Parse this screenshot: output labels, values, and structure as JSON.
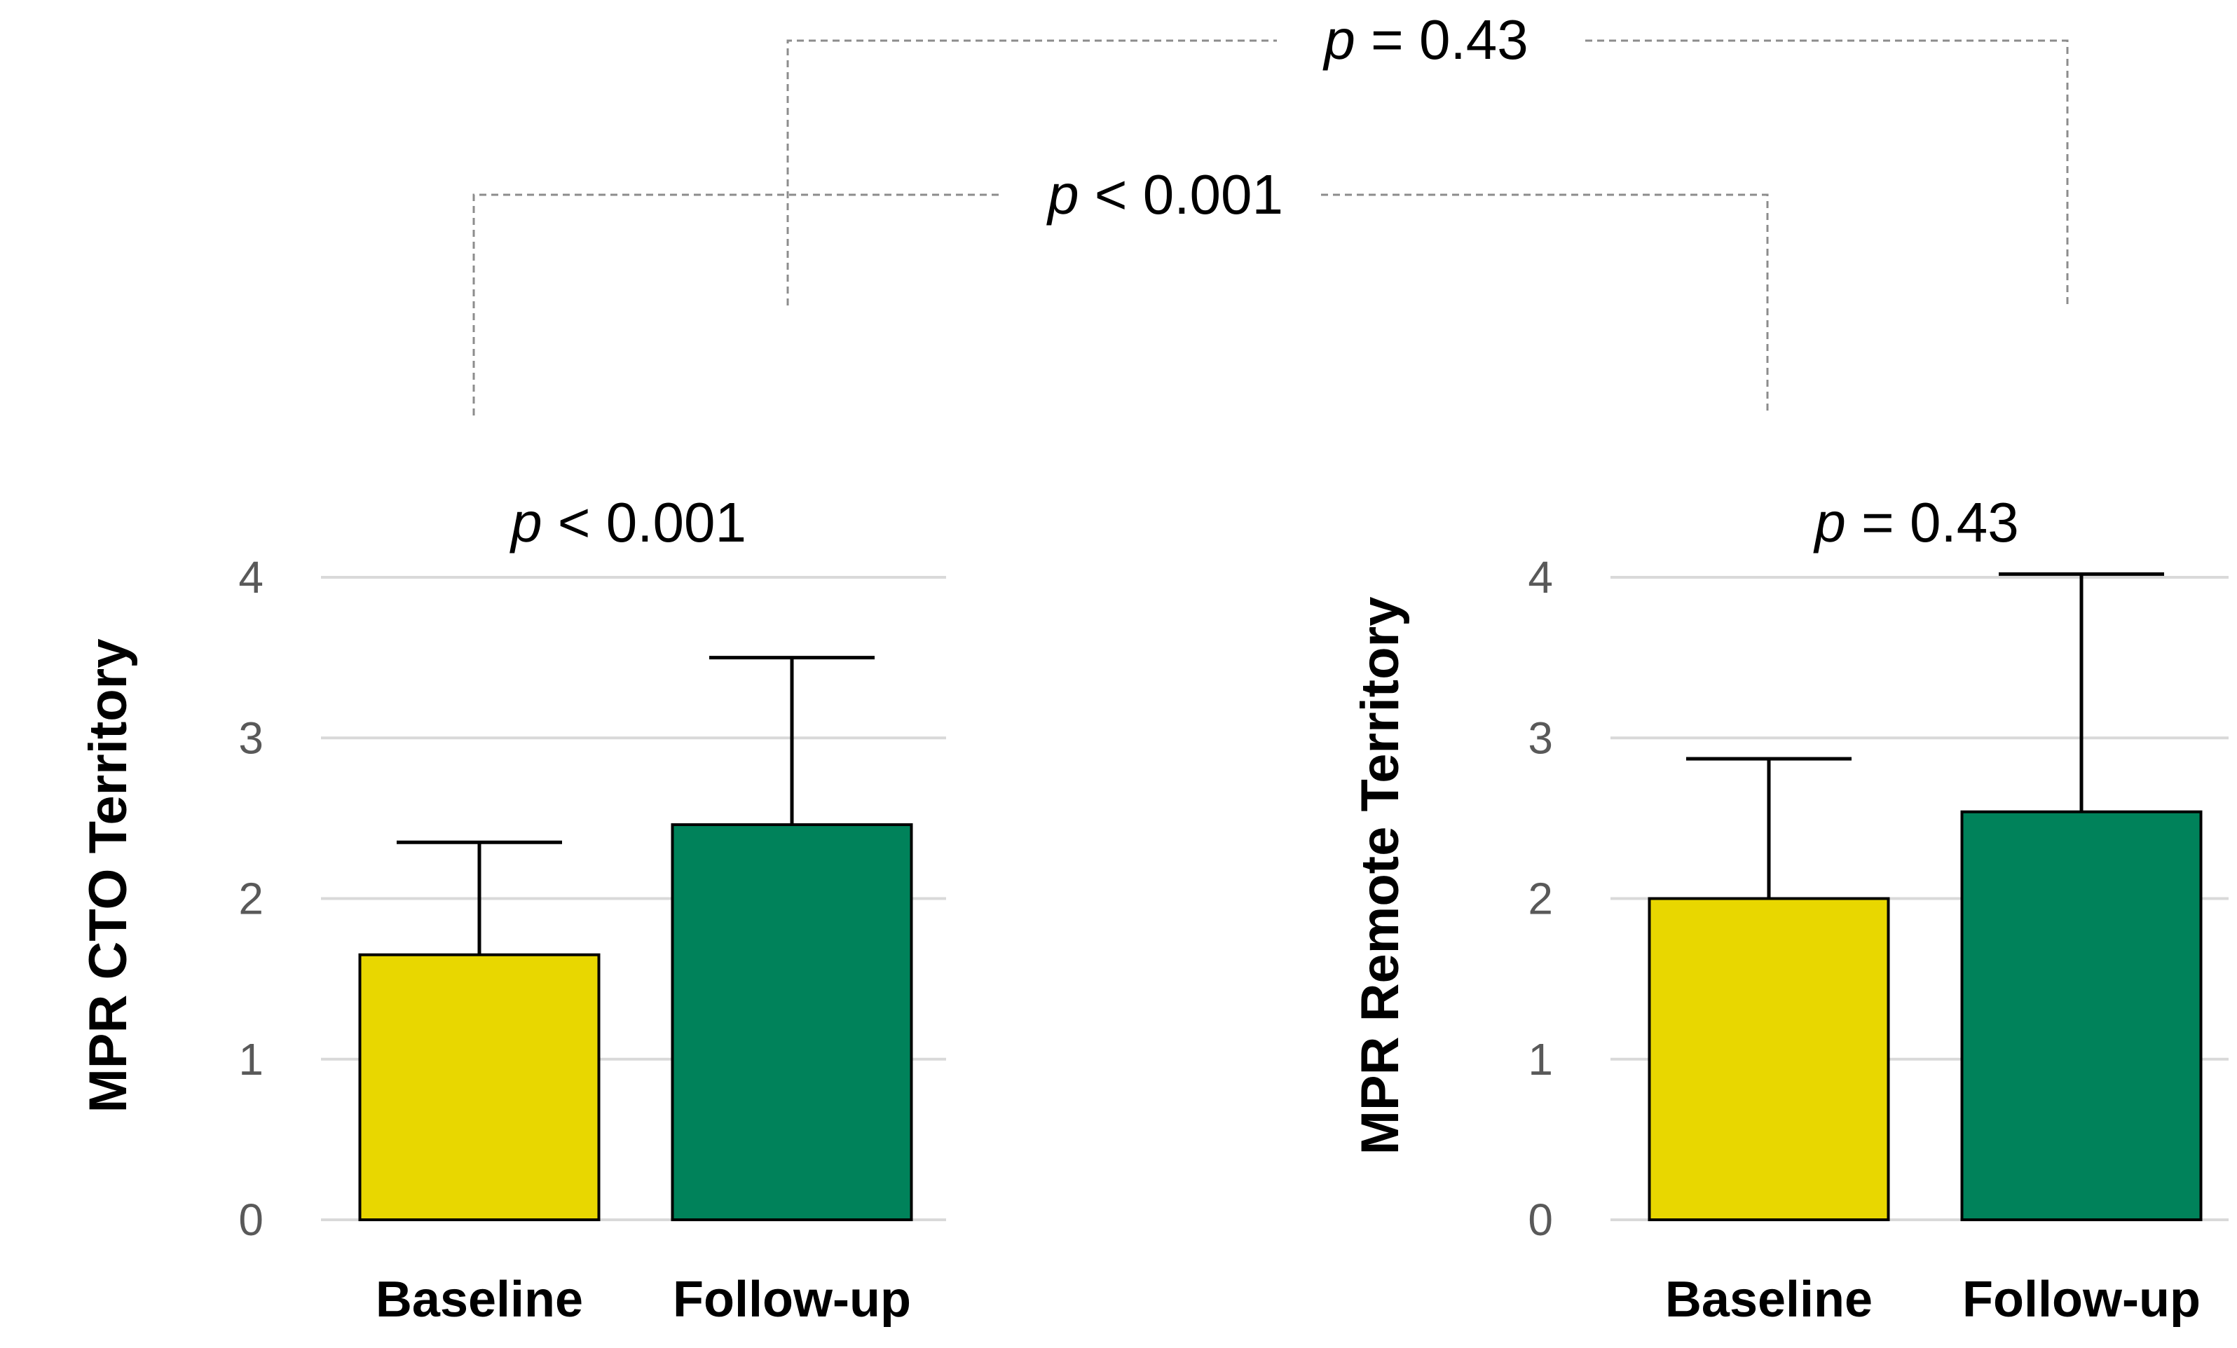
{
  "colors": {
    "baseline": "#E8D700",
    "followup": "#00825A"
  },
  "chart_data": [
    {
      "type": "bar",
      "ylabel": "MPR CTO Territory",
      "categories": [
        "Baseline",
        "Follow-up"
      ],
      "values": [
        1.65,
        2.46
      ],
      "error_upper": [
        2.35,
        3.5
      ],
      "ylim": [
        0,
        4
      ],
      "yticks": [
        "0",
        "1",
        "2",
        "3",
        "4"
      ],
      "annotation": {
        "p_label": "p",
        "p_rest": " < 0.001"
      }
    },
    {
      "type": "bar",
      "ylabel": "MPR Remote Territory",
      "categories": [
        "Baseline",
        "Follow-up"
      ],
      "values": [
        2.0,
        2.54
      ],
      "error_upper": [
        2.87,
        4.02
      ],
      "ylim": [
        0,
        4
      ],
      "yticks": [
        "0",
        "1",
        "2",
        "3",
        "4"
      ],
      "annotation": {
        "p_label": "p",
        "p_rest": " = 0.43"
      }
    }
  ],
  "comparisons": [
    {
      "name": "top",
      "p_label": "p",
      "p_rest": " = 0.43"
    },
    {
      "name": "middle",
      "p_label": "p",
      "p_rest": " < 0.001"
    }
  ]
}
